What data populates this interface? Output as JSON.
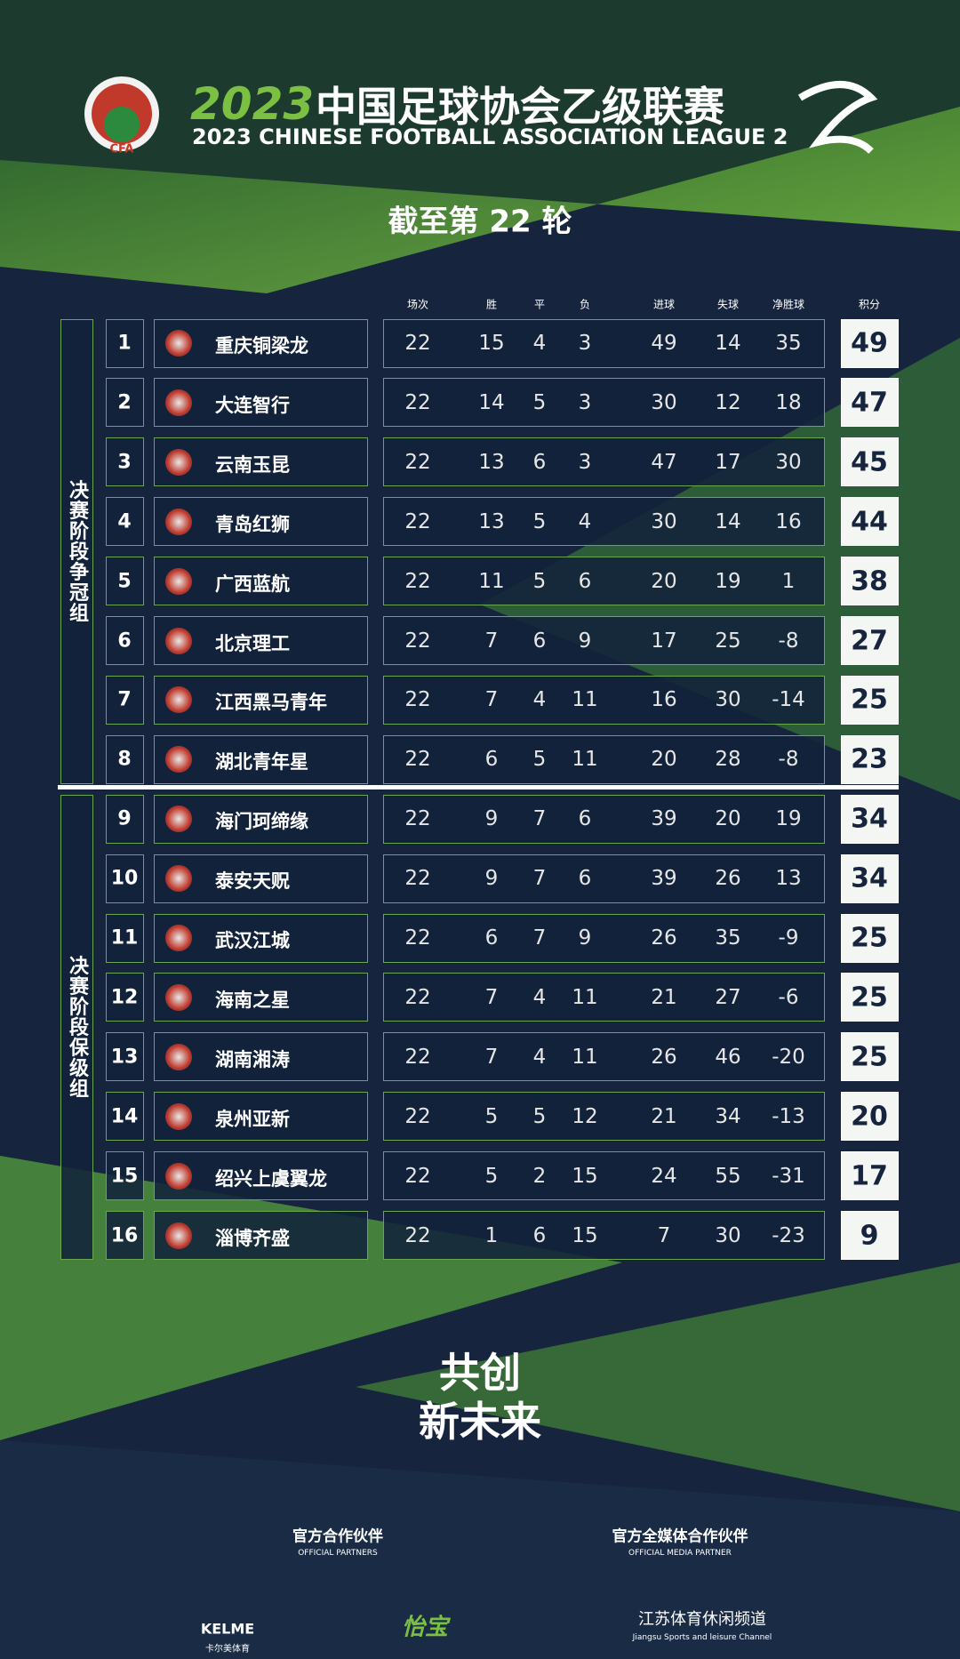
{
  "header": {
    "badge": "CFA",
    "year": "2023",
    "title": "中国足球协会乙级联赛",
    "subtitle": "2023 CHINESE FOOTBALL ASSOCIATION LEAGUE 2",
    "round": "截至第 22 轮"
  },
  "table": {
    "columns": [
      "场次",
      "胜",
      "平",
      "负",
      "进球",
      "失球",
      "净胜球"
    ],
    "points_label": "积分",
    "groups": [
      {
        "label": "决赛阶段争冠组",
        "from": 0,
        "to": 7
      },
      {
        "label": "决赛阶段保级组",
        "from": 8,
        "to": 15
      }
    ],
    "rows": [
      {
        "rank": 1,
        "team": "重庆铜梁龙",
        "stats": [
          22,
          15,
          4,
          3,
          49,
          14,
          35
        ],
        "points": 49
      },
      {
        "rank": 2,
        "team": "大连智行",
        "stats": [
          22,
          14,
          5,
          3,
          30,
          12,
          18
        ],
        "points": 47
      },
      {
        "rank": 3,
        "team": "云南玉昆",
        "stats": [
          22,
          13,
          6,
          3,
          47,
          17,
          30
        ],
        "points": 45
      },
      {
        "rank": 4,
        "team": "青岛红狮",
        "stats": [
          22,
          13,
          5,
          4,
          30,
          14,
          16
        ],
        "points": 44
      },
      {
        "rank": 5,
        "team": "广西蓝航",
        "stats": [
          22,
          11,
          5,
          6,
          20,
          19,
          1
        ],
        "points": 38
      },
      {
        "rank": 6,
        "team": "北京理工",
        "stats": [
          22,
          7,
          6,
          9,
          17,
          25,
          -8
        ],
        "points": 27
      },
      {
        "rank": 7,
        "team": "江西黑马青年",
        "stats": [
          22,
          7,
          4,
          11,
          16,
          30,
          -14
        ],
        "points": 25
      },
      {
        "rank": 8,
        "team": "湖北青年星",
        "stats": [
          22,
          6,
          5,
          11,
          20,
          28,
          -8
        ],
        "points": 23
      },
      {
        "rank": 9,
        "team": "海门珂缔缘",
        "stats": [
          22,
          9,
          7,
          6,
          39,
          20,
          19
        ],
        "points": 34
      },
      {
        "rank": 10,
        "team": "泰安天贶",
        "stats": [
          22,
          9,
          7,
          6,
          39,
          26,
          13
        ],
        "points": 34
      },
      {
        "rank": 11,
        "team": "武汉江城",
        "stats": [
          22,
          6,
          7,
          9,
          26,
          35,
          -9
        ],
        "points": 25
      },
      {
        "rank": 12,
        "team": "海南之星",
        "stats": [
          22,
          7,
          4,
          11,
          21,
          27,
          -6
        ],
        "points": 25
      },
      {
        "rank": 13,
        "team": "湖南湘涛",
        "stats": [
          22,
          7,
          4,
          11,
          26,
          46,
          -20
        ],
        "points": 25
      },
      {
        "rank": 14,
        "team": "泉州亚新",
        "stats": [
          22,
          5,
          5,
          12,
          21,
          34,
          -13
        ],
        "points": 20
      },
      {
        "rank": 15,
        "team": "绍兴上虞翼龙",
        "stats": [
          22,
          5,
          2,
          15,
          24,
          55,
          -31
        ],
        "points": 17
      },
      {
        "rank": 16,
        "team": "淄博齐盛",
        "stats": [
          22,
          1,
          6,
          15,
          7,
          30,
          -23
        ],
        "points": 9
      }
    ]
  },
  "slogan": [
    "共创",
    "新未来"
  ],
  "partners": {
    "official": "官方合作伙伴",
    "official_en": "OFFICIAL PARTNERS",
    "media": "官方全媒体合作伙伴",
    "media_en": "OFFICIAL MEDIA PARTNER",
    "sponsors": [
      {
        "name": "KELME",
        "sub": "卡尔美体育"
      },
      {
        "name": "怡宝"
      },
      {
        "name": "江苏体育休闲频道",
        "sub": "Jiangsu Sports and leisure Channel"
      }
    ]
  }
}
